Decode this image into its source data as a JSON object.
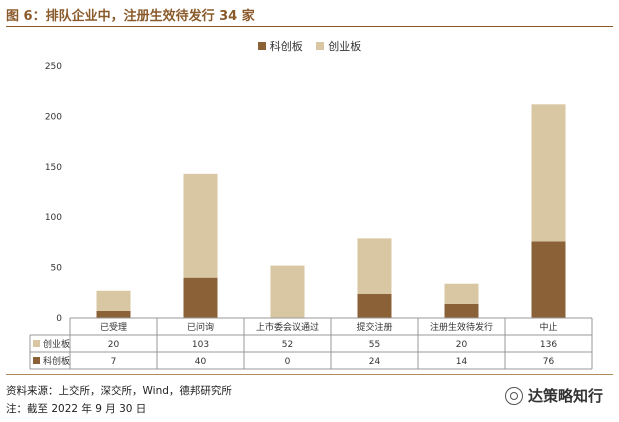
{
  "header": {
    "title": "图 6：排队企业中，注册生效待发行 34 家"
  },
  "footer": {
    "source": "资料来源：上交所，深交所，Wind，德邦研究所",
    "note": "注：截至 2022 年 9 月 30 日",
    "watermark": "达策略知行",
    "watermark_icon": "wechat-icon"
  },
  "chart_data": {
    "type": "bar",
    "stacked": true,
    "title": "",
    "xlabel": "",
    "ylabel": "",
    "ylim": [
      0,
      250
    ],
    "yticks": [
      0,
      50,
      100,
      150,
      200,
      250
    ],
    "grid": false,
    "legend_position": "top-center",
    "categories": [
      "已受理",
      "已问询",
      "上市委会议通过",
      "提交注册",
      "注册生效待发行",
      "中止"
    ],
    "series": [
      {
        "name": "科创板",
        "color": "#8b6138",
        "values": [
          7,
          40,
          0,
          24,
          14,
          76
        ]
      },
      {
        "name": "创业板",
        "color": "#d9c6a2",
        "values": [
          20,
          103,
          52,
          55,
          20,
          136
        ]
      }
    ],
    "table_rows": [
      {
        "label": "创业板",
        "color": "#d9c6a2",
        "values": [
          20,
          103,
          52,
          55,
          20,
          136
        ]
      },
      {
        "label": "科创板",
        "color": "#8b6138",
        "values": [
          7,
          40,
          0,
          24,
          14,
          76
        ]
      }
    ]
  }
}
